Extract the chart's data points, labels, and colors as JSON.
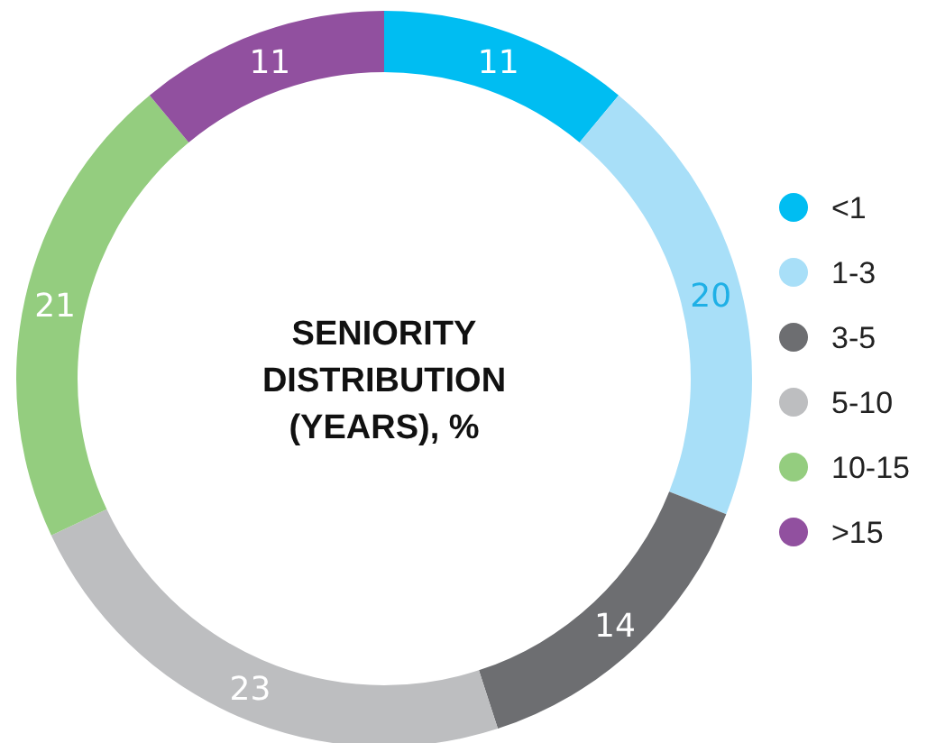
{
  "chart_data": {
    "type": "donut",
    "title": "SENIORITY DISTRIBUTION (YEARS), %",
    "categories": [
      "<1",
      "1-3",
      "3-5",
      "5-10",
      "10-15",
      ">15"
    ],
    "values": [
      11,
      20,
      14,
      23,
      21,
      11
    ],
    "colors": [
      "#00bdf2",
      "#a8dff8",
      "#6d6e71",
      "#bdbec0",
      "#94cd7f",
      "#91509f"
    ],
    "data_labels": true,
    "legend": "right"
  }
}
